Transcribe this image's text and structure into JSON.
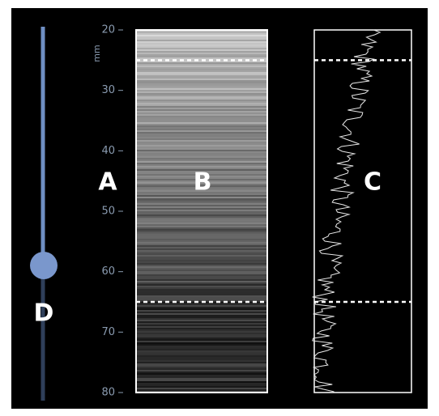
{
  "axis": {
    "unit": "mm",
    "ylim": [
      20,
      80
    ],
    "yticks": [
      20,
      30,
      40,
      50,
      60,
      70,
      80
    ]
  },
  "markers": [
    25,
    65
  ],
  "labels": {
    "a": "A",
    "b": "B",
    "c": "C",
    "d": "D"
  }
}
